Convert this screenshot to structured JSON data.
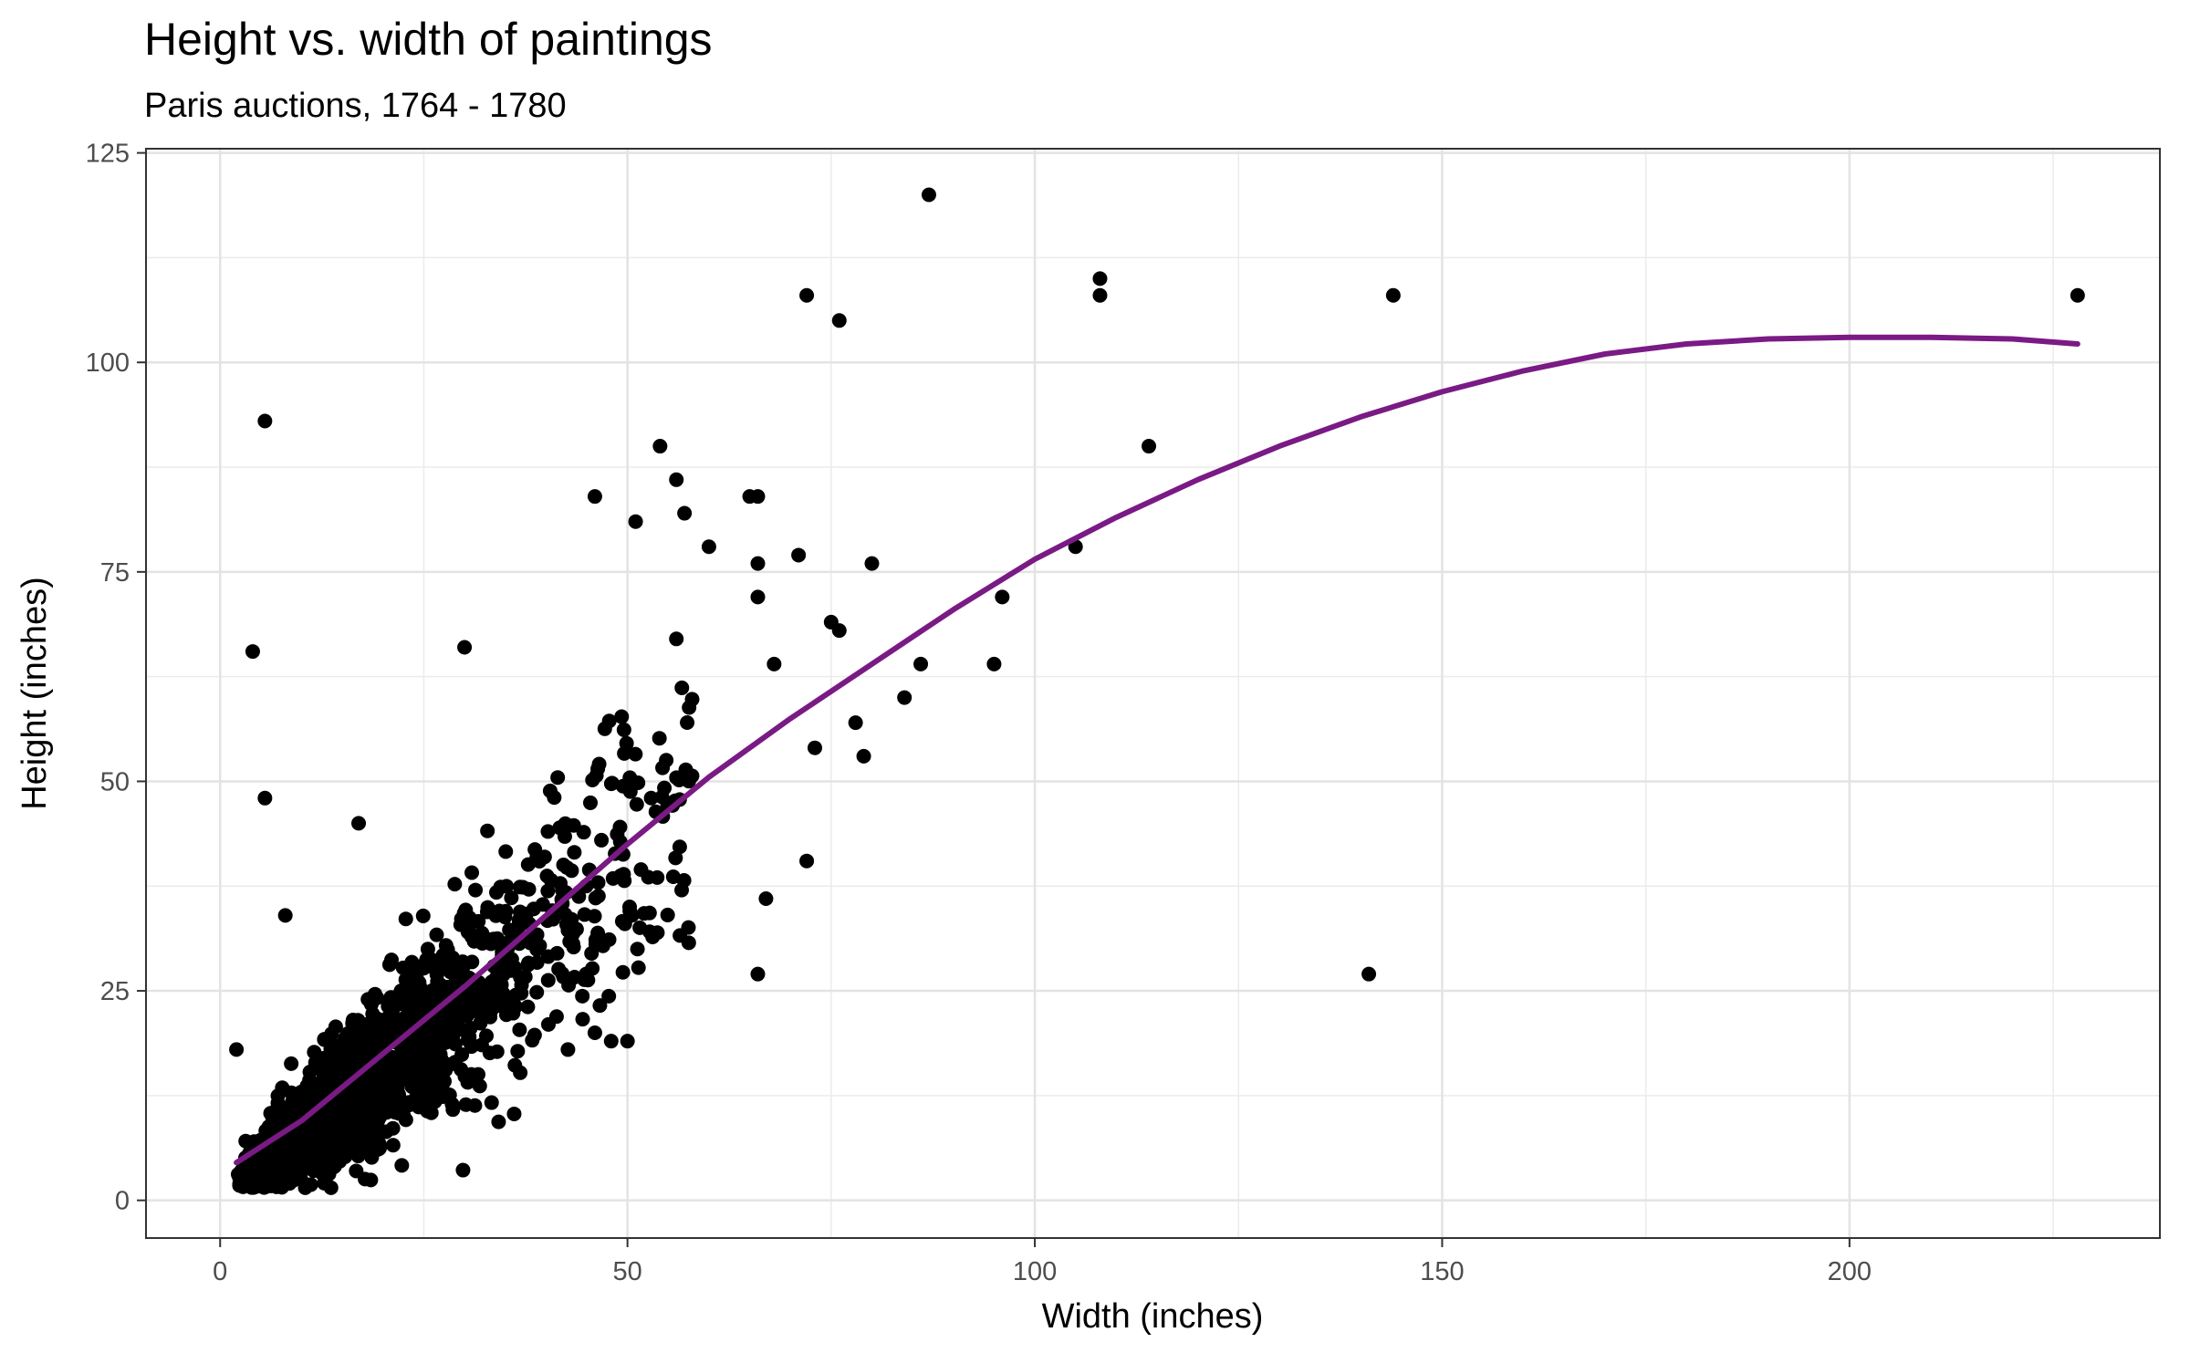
{
  "chart_data": {
    "type": "scatter",
    "title": "Height vs. width of paintings",
    "subtitle": "Paris auctions, 1764 - 1780",
    "xlabel": "Width (inches)",
    "ylabel": "Height (inches)",
    "xlim": [
      -9.1,
      238.1
    ],
    "ylim": [
      -4.5,
      125.5
    ],
    "x_ticks": [
      0,
      50,
      100,
      150,
      200
    ],
    "y_ticks": [
      0,
      25,
      50,
      75,
      100,
      125
    ],
    "grid": true,
    "legend": "none",
    "point_color": "#000000",
    "trend_color": "#7a1a85",
    "notable_points": [
      {
        "x": 87,
        "y": 120
      },
      {
        "x": 108,
        "y": 110
      },
      {
        "x": 108,
        "y": 108
      },
      {
        "x": 144,
        "y": 108
      },
      {
        "x": 228,
        "y": 108
      },
      {
        "x": 72,
        "y": 108
      },
      {
        "x": 76,
        "y": 105
      },
      {
        "x": 5.5,
        "y": 93
      },
      {
        "x": 114,
        "y": 90
      },
      {
        "x": 54,
        "y": 90
      },
      {
        "x": 105,
        "y": 78
      },
      {
        "x": 96,
        "y": 72
      },
      {
        "x": 95,
        "y": 64
      },
      {
        "x": 86,
        "y": 64
      },
      {
        "x": 84,
        "y": 60
      },
      {
        "x": 80,
        "y": 76
      },
      {
        "x": 76,
        "y": 68
      },
      {
        "x": 75,
        "y": 69
      },
      {
        "x": 71,
        "y": 77
      },
      {
        "x": 78,
        "y": 57
      },
      {
        "x": 79,
        "y": 53
      },
      {
        "x": 73,
        "y": 54
      },
      {
        "x": 72,
        "y": 40.5
      },
      {
        "x": 68,
        "y": 64
      },
      {
        "x": 66,
        "y": 27
      },
      {
        "x": 67,
        "y": 36
      },
      {
        "x": 141,
        "y": 27
      },
      {
        "x": 4,
        "y": 65.5
      },
      {
        "x": 5.5,
        "y": 48
      },
      {
        "x": 2,
        "y": 18
      },
      {
        "x": 8,
        "y": 34
      },
      {
        "x": 17,
        "y": 45
      },
      {
        "x": 30,
        "y": 66
      },
      {
        "x": 46,
        "y": 84
      },
      {
        "x": 51,
        "y": 81
      },
      {
        "x": 56,
        "y": 86
      },
      {
        "x": 57,
        "y": 82
      },
      {
        "x": 65,
        "y": 84
      },
      {
        "x": 66,
        "y": 84
      },
      {
        "x": 60,
        "y": 78
      },
      {
        "x": 66,
        "y": 72
      },
      {
        "x": 66,
        "y": 76
      },
      {
        "x": 56,
        "y": 67
      },
      {
        "x": 50,
        "y": 19
      },
      {
        "x": 48,
        "y": 19
      },
      {
        "x": 46,
        "y": 20
      }
    ],
    "dense_cluster": {
      "description_free": true,
      "x_range": [
        2,
        60
      ],
      "slope": 0.78,
      "point_count": 1500
    },
    "trend_line": {
      "x": [
        2,
        10,
        20,
        30,
        40,
        50,
        60,
        70,
        80,
        90,
        100,
        110,
        120,
        130,
        140,
        150,
        160,
        170,
        180,
        190,
        200,
        210,
        220,
        228
      ],
      "y": [
        4.5,
        9.5,
        17.5,
        25.5,
        34,
        42.5,
        50.5,
        57.5,
        64,
        70.5,
        76.5,
        81.5,
        86,
        90,
        93.5,
        96.5,
        99,
        101,
        102.2,
        102.8,
        103,
        103,
        102.8,
        102.2
      ]
    }
  }
}
